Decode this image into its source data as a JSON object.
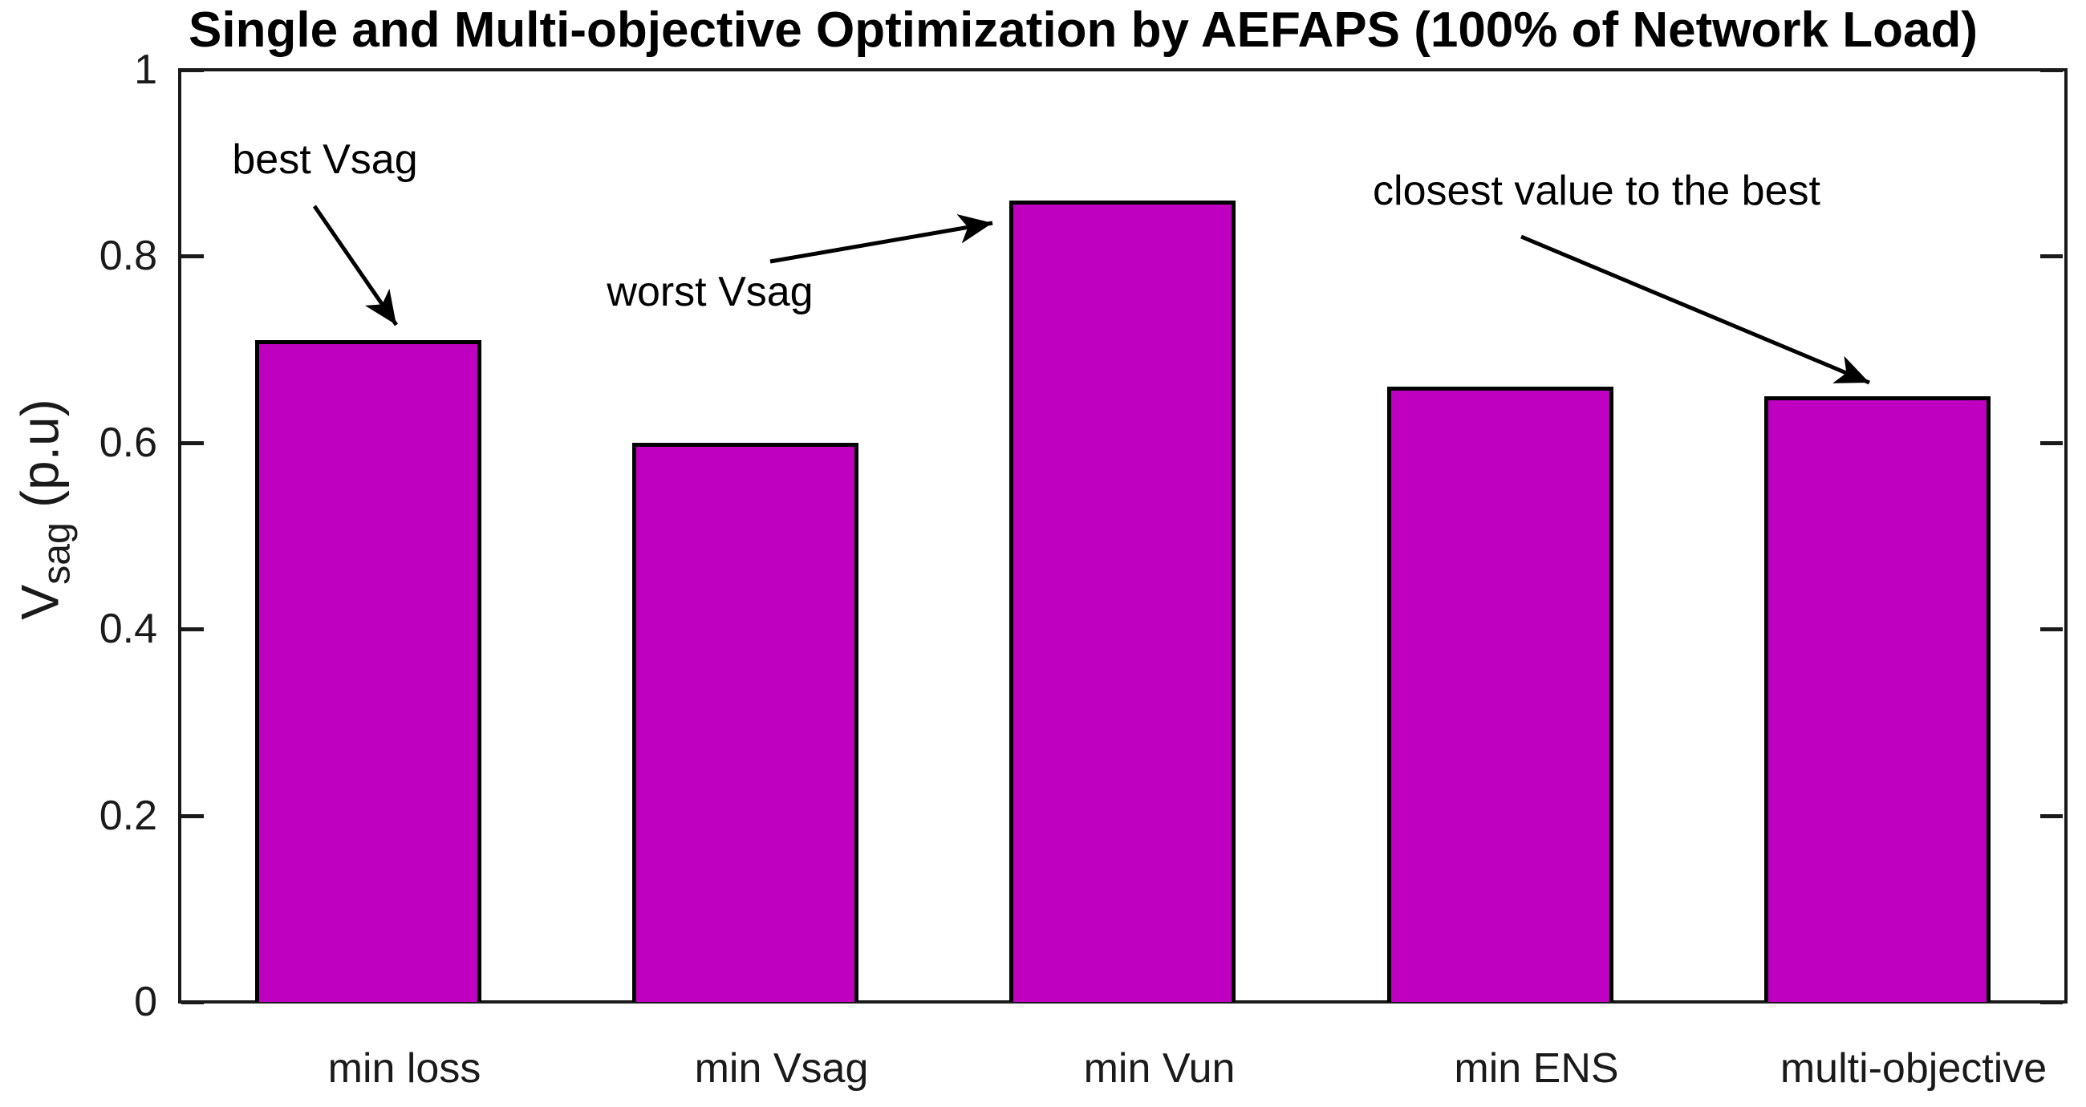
{
  "figure": {
    "background": "#ffffff"
  },
  "chart_data": {
    "type": "bar",
    "title": "Single and Multi-objective Optimization by AEFAPS (100% of Network Load)",
    "categories": [
      "min loss",
      "min Vsag",
      "min Vun",
      "min ENS",
      "multi-objective"
    ],
    "values": [
      0.71,
      0.6,
      0.86,
      0.66,
      0.65
    ],
    "xlabel": "",
    "ylabel": {
      "main": "V",
      "subscript": "sag",
      "unit": " (p.u)"
    },
    "ylim": [
      0,
      1
    ],
    "yticks": [
      0,
      0.2,
      0.4,
      0.6,
      0.8,
      1
    ],
    "ytick_labels": [
      "0",
      "0.2",
      "0.4",
      "0.6",
      "0.8",
      "1"
    ],
    "grid": false,
    "legend": null,
    "bar_width_fraction": 0.6,
    "colors": {
      "bar_fill": "#C000C0",
      "bar_edge": "#000000",
      "axis": "#1a1a1a",
      "tick_label": "#1a1a1a",
      "title": "#000000",
      "annotation": "#000000"
    },
    "annotations": [
      {
        "text": "best Vsag",
        "cx": 0.077,
        "cy": 0.096,
        "arrow": {
          "x1": 0.0715,
          "y1": 0.146,
          "x2": 0.115,
          "y2": 0.274
        }
      },
      {
        "text": "worst Vsag",
        "cx": 0.281,
        "cy": 0.238,
        "arrow": {
          "x1": 0.313,
          "y1": 0.206,
          "x2": 0.431,
          "y2": 0.164
        }
      },
      {
        "text": "closest value to the best",
        "cx": 0.751,
        "cy": 0.13,
        "arrow": {
          "x1": 0.711,
          "y1": 0.179,
          "x2": 0.896,
          "y2": 0.336
        }
      }
    ]
  }
}
